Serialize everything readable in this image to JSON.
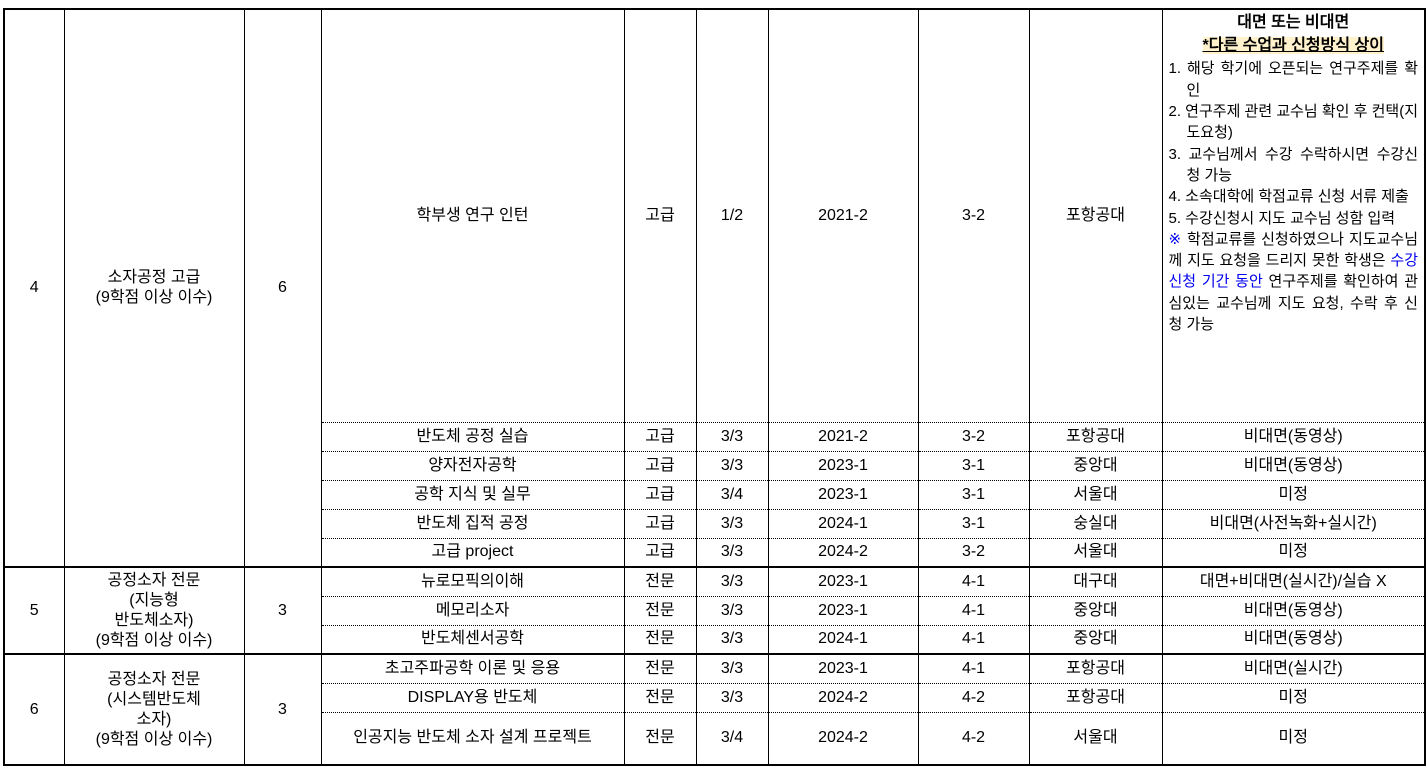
{
  "colors": {
    "text": "#000000",
    "blue": "#0000EE",
    "highlight_bg": "#FFF2CC",
    "border": "#000000"
  },
  "mode_header": {
    "title": "대면 또는 비대면",
    "subtitle": "*다른 수업과 신청방식 상이",
    "steps": [
      "1. 해당 학기에 오픈되는 연구주제를 확인",
      "2. 연구주제 관련 교수님 확인 후 컨택(지도요청)",
      "3. 교수님께서 수강 수락하시면 수강신청 가능",
      "4. 소속대학에 학점교류 신청 서류 제출",
      "5. 수강신청시 지도 교수님 성함 입력"
    ],
    "extra_note": {
      "prefix": "※",
      "before": " 학점교류를 신청하였으나 지도교수님께 지도 요청을 드리지 못한 학생은 ",
      "highlighted_text": "수강신청 기간 동안",
      "after": " 연구주제를 확인하여 관심있는 교수님께 지도 요청, 수락 후 신청 가능"
    }
  },
  "groups": [
    {
      "no": "4",
      "category_lines": [
        "소자공정 고급",
        "(9학점 이상 이수)"
      ],
      "credits": "6",
      "courses": [
        {
          "name": "학부생 연구 인턴",
          "level": "고급",
          "ratio": "1/2",
          "term": "2021-2",
          "grade_sem": "3-2",
          "univ": "포항공대",
          "mode": ""
        },
        {
          "name": "반도체 공정 실습",
          "level": "고급",
          "ratio": "3/3",
          "term": "2021-2",
          "grade_sem": "3-2",
          "univ": "포항공대",
          "mode": "비대면(동영상)"
        },
        {
          "name": "양자전자공학",
          "level": "고급",
          "ratio": "3/3",
          "term": "2023-1",
          "grade_sem": "3-1",
          "univ": "중앙대",
          "mode": "비대면(동영상)"
        },
        {
          "name": "공학 지식 및 실무",
          "level": "고급",
          "ratio": "3/4",
          "term": "2023-1",
          "grade_sem": "3-1",
          "univ": "서울대",
          "mode": "미정"
        },
        {
          "name": "반도체 집적 공정",
          "level": "고급",
          "ratio": "3/3",
          "term": "2024-1",
          "grade_sem": "3-1",
          "univ": "숭실대",
          "mode": "비대면(사전녹화+실시간)"
        },
        {
          "name": "고급 project",
          "level": "고급",
          "ratio": "3/3",
          "term": "2024-2",
          "grade_sem": "3-2",
          "univ": "서울대",
          "mode": "미정"
        }
      ]
    },
    {
      "no": "5",
      "category_lines": [
        "공정소자 전문",
        "(지능형",
        "반도체소자)",
        "(9학점 이상 이수)"
      ],
      "credits": "3",
      "courses": [
        {
          "name": "뉴로모픽의이해",
          "level": "전문",
          "ratio": "3/3",
          "term": "2023-1",
          "grade_sem": "4-1",
          "univ": "대구대",
          "mode": "대면+비대면(실시간)/실습 X"
        },
        {
          "name": "메모리소자",
          "level": "전문",
          "ratio": "3/3",
          "term": "2023-1",
          "grade_sem": "4-1",
          "univ": "중앙대",
          "mode": "비대면(동영상)"
        },
        {
          "name": "반도체센서공학",
          "level": "전문",
          "ratio": "3/3",
          "term": "2024-1",
          "grade_sem": "4-1",
          "univ": "중앙대",
          "mode": "비대면(동영상)"
        }
      ]
    },
    {
      "no": "6",
      "category_lines": [
        "공정소자 전문",
        "(시스템반도체",
        "소자)",
        "(9학점 이상 이수)"
      ],
      "credits": "3",
      "courses": [
        {
          "name": "초고주파공학 이론 및 응용",
          "level": "전문",
          "ratio": "3/3",
          "term": "2023-1",
          "grade_sem": "4-1",
          "univ": "포항공대",
          "mode": "비대면(실시간)"
        },
        {
          "name": "DISPLAY용 반도체",
          "level": "전문",
          "ratio": "3/3",
          "term": "2024-2",
          "grade_sem": "4-2",
          "univ": "포항공대",
          "mode": "미정"
        },
        {
          "name": "인공지능 반도체 소자 설계 프로젝트",
          "level": "전문",
          "ratio": "3/4",
          "term": "2024-2",
          "grade_sem": "4-2",
          "univ": "서울대",
          "mode": "미정"
        }
      ]
    }
  ]
}
